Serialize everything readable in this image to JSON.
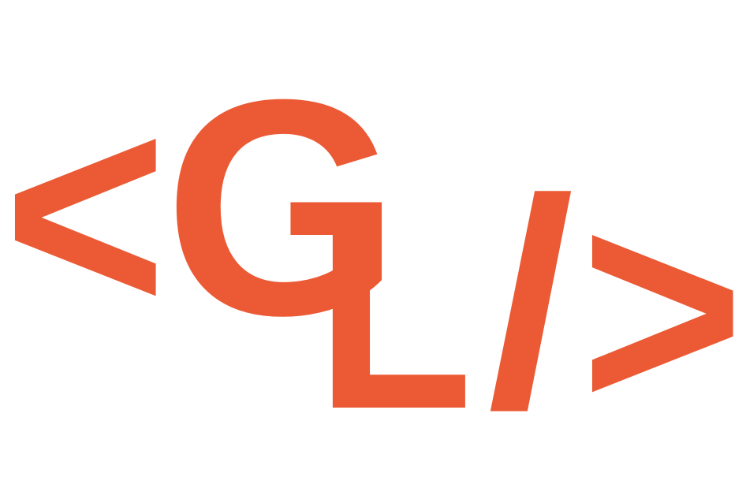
{
  "logo": {
    "glyphs": [
      "<",
      "G",
      "L",
      "/",
      ">"
    ]
  }
}
